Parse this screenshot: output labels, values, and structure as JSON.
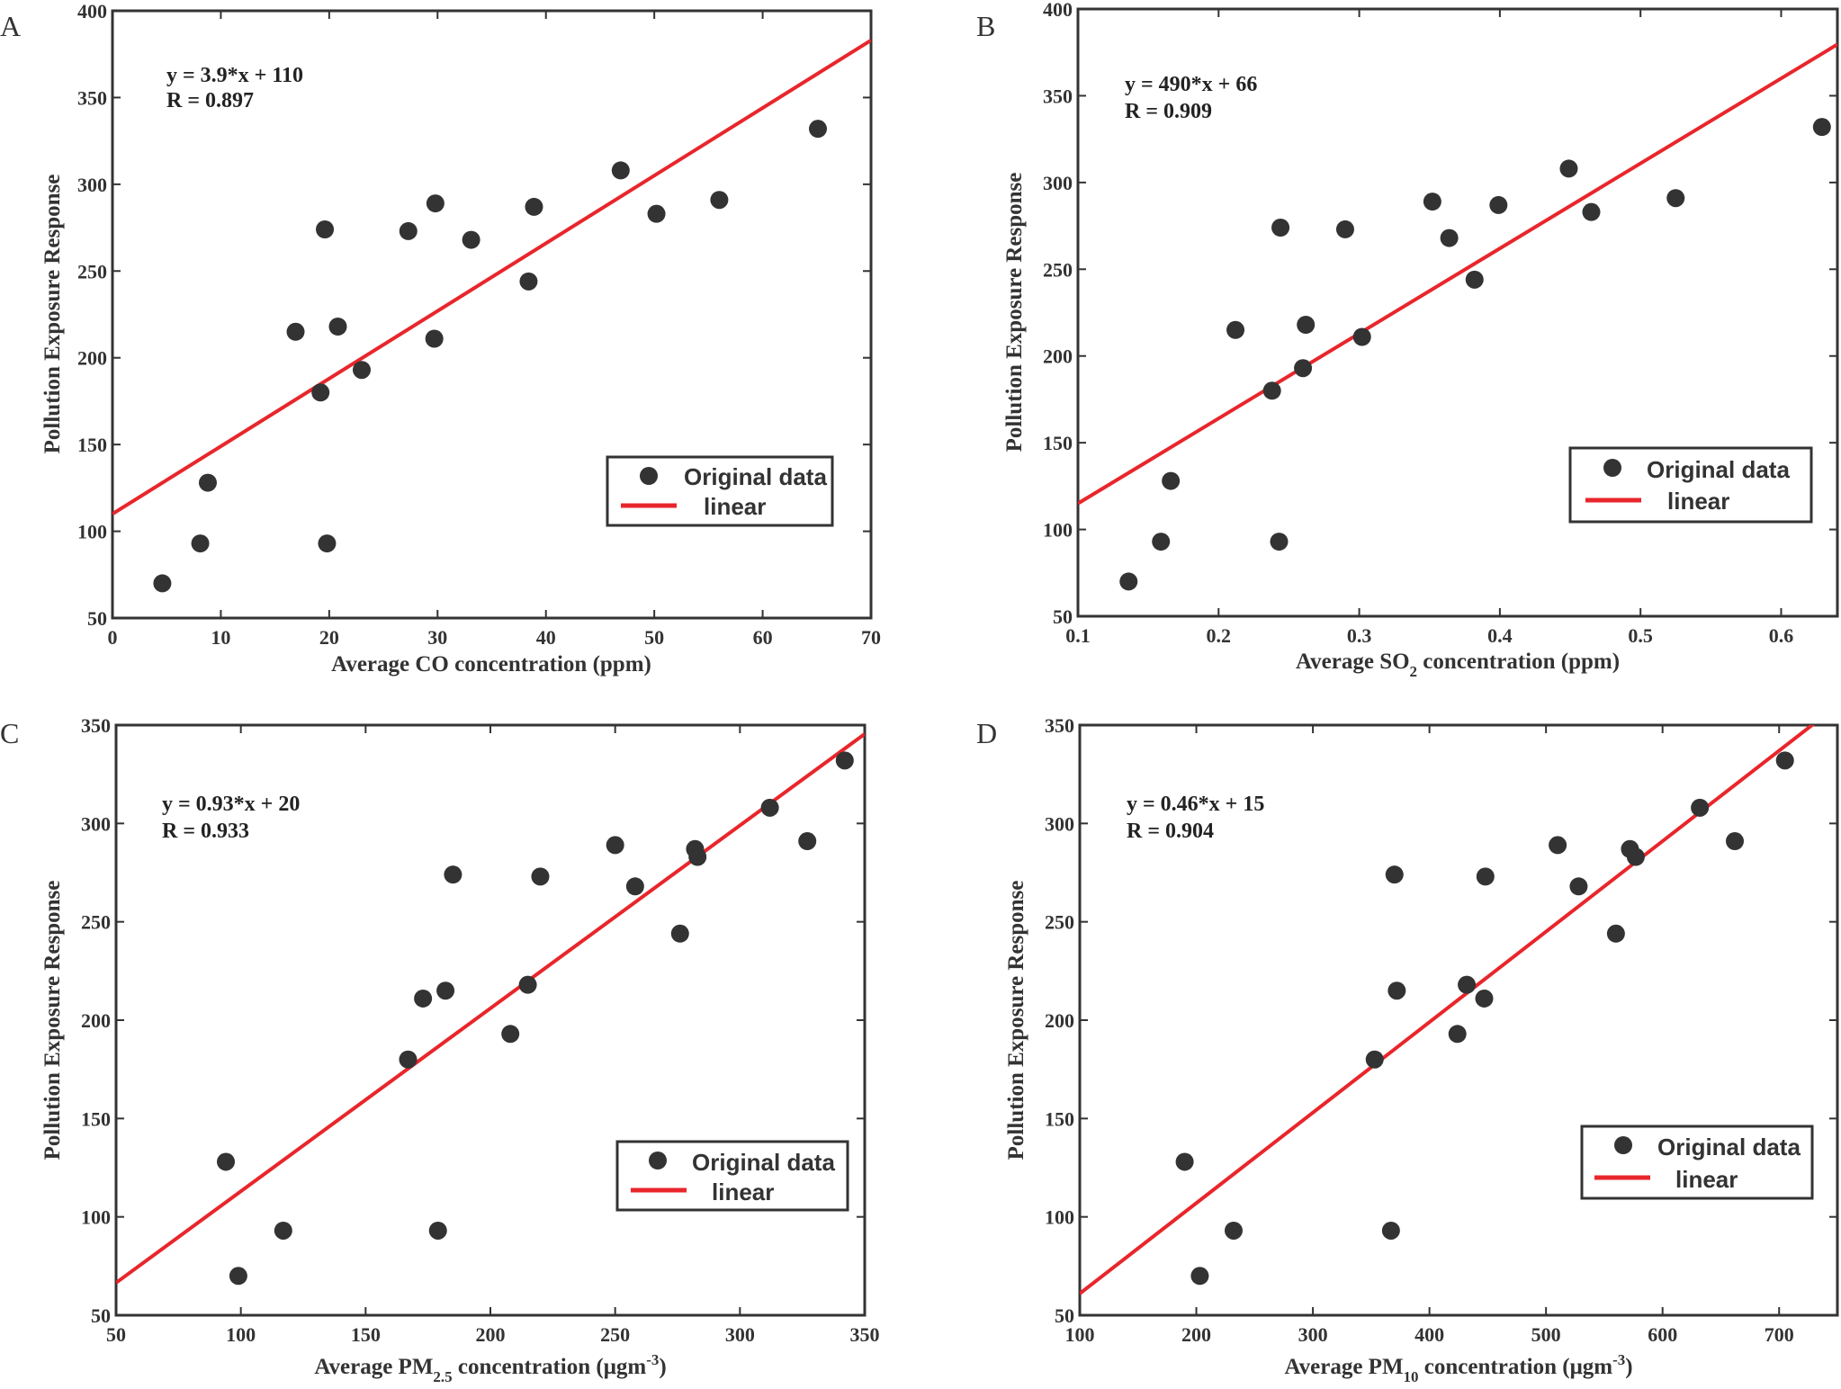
{
  "colors": {
    "points": "#333333",
    "fit": "#e8262b",
    "axes": "#333333"
  },
  "chart_data": [
    {
      "type": "scatter",
      "panel": "A",
      "xlabel": "Average CO concentration (ppm)",
      "ylabel": "Pollution Exposure Response",
      "xlim": [
        0,
        70
      ],
      "ylim": [
        50,
        400
      ],
      "xticks": [
        0,
        10,
        20,
        30,
        40,
        50,
        60,
        70
      ],
      "yticks": [
        50,
        100,
        150,
        200,
        250,
        300,
        350,
        400
      ],
      "equation": "y = 3.9*x + 110",
      "r_text": "R = 0.897",
      "fit": {
        "slope": 3.9,
        "intercept": 110
      },
      "legend": {
        "position": "lower-right",
        "entries": [
          "Original data",
          "linear"
        ]
      },
      "x": [
        4.6,
        8.1,
        8.8,
        16.9,
        19.2,
        19.6,
        19.8,
        20.8,
        23,
        27.3,
        29.7,
        29.8,
        33.1,
        38.4,
        38.9,
        46.9,
        50.2,
        56,
        65.1
      ],
      "y": [
        70,
        93,
        128,
        215,
        180,
        274,
        93,
        218,
        193,
        273,
        211,
        289,
        268,
        244,
        287,
        308,
        283,
        291,
        332
      ]
    },
    {
      "type": "scatter",
      "panel": "B",
      "xlabel_main": "Average SO",
      "xlabel_sub": "2",
      "xlabel_rest": " concentration (ppm)",
      "ylabel": "Pollution Exposure Response",
      "xlim": [
        0.1,
        0.64
      ],
      "ylim": [
        50,
        400
      ],
      "xticks": [
        0.1,
        0.2,
        0.3,
        0.4,
        0.5,
        0.6
      ],
      "yticks": [
        50,
        100,
        150,
        200,
        250,
        300,
        350,
        400
      ],
      "equation": "y = 490*x + 66",
      "r_text": "R = 0.909",
      "fit": {
        "slope": 490,
        "intercept": 66
      },
      "legend": {
        "position": "lower-right",
        "entries": [
          "Original data",
          "linear"
        ]
      },
      "x": [
        0.136,
        0.159,
        0.166,
        0.212,
        0.238,
        0.244,
        0.243,
        0.262,
        0.26,
        0.29,
        0.302,
        0.352,
        0.364,
        0.382,
        0.399,
        0.449,
        0.465,
        0.525,
        0.629
      ],
      "y": [
        70,
        93,
        128,
        215,
        180,
        274,
        93,
        218,
        193,
        273,
        211,
        289,
        268,
        244,
        287,
        308,
        283,
        291,
        332
      ]
    },
    {
      "type": "scatter",
      "panel": "C",
      "xlabel_main": "Average PM",
      "xlabel_sub": "2.5",
      "xlabel_rest": " concentration (μgm",
      "xlabel_sup": "-3",
      "xlabel_end": ")",
      "ylabel": "Pollution Exposure Response",
      "xlim": [
        50,
        350
      ],
      "ylim": [
        50,
        350
      ],
      "xticks": [
        50,
        100,
        150,
        200,
        250,
        300,
        350
      ],
      "yticks": [
        50,
        100,
        150,
        200,
        250,
        300,
        350
      ],
      "equation": "y = 0.93*x + 20",
      "r_text": "R = 0.933",
      "fit": {
        "slope": 0.93,
        "intercept": 20
      },
      "legend": {
        "position": "lower-right",
        "entries": [
          "Original data",
          "linear"
        ]
      },
      "x": [
        99,
        117,
        94,
        182,
        167,
        185,
        179,
        215,
        208,
        220,
        173,
        250,
        258,
        276,
        282,
        312,
        283,
        327,
        342
      ],
      "y": [
        70,
        93,
        128,
        215,
        180,
        274,
        93,
        218,
        193,
        273,
        211,
        289,
        268,
        244,
        287,
        308,
        283,
        291,
        332
      ]
    },
    {
      "type": "scatter",
      "panel": "D",
      "xlabel_main": "Average PM",
      "xlabel_sub": "10",
      "xlabel_rest": " concentration (μgm",
      "xlabel_sup": "-3",
      "xlabel_end": ")",
      "ylabel": "Pollution Exposure Response",
      "xlim": [
        100,
        750
      ],
      "ylim": [
        50,
        350
      ],
      "xticks": [
        100,
        200,
        300,
        400,
        500,
        600,
        700
      ],
      "yticks": [
        50,
        100,
        150,
        200,
        250,
        300,
        350
      ],
      "equation": "y = 0.46*x + 15",
      "r_text": "R = 0.904",
      "fit": {
        "slope": 0.46,
        "intercept": 15
      },
      "legend": {
        "position": "lower-right",
        "entries": [
          "Original data",
          "linear"
        ]
      },
      "x": [
        203,
        232,
        190,
        372,
        353,
        370,
        367,
        432,
        424,
        448,
        447,
        510,
        528,
        560,
        572,
        632,
        577,
        662,
        705
      ],
      "y": [
        70,
        93,
        128,
        215,
        180,
        274,
        93,
        218,
        193,
        273,
        211,
        289,
        268,
        244,
        287,
        308,
        283,
        291,
        332
      ]
    }
  ]
}
